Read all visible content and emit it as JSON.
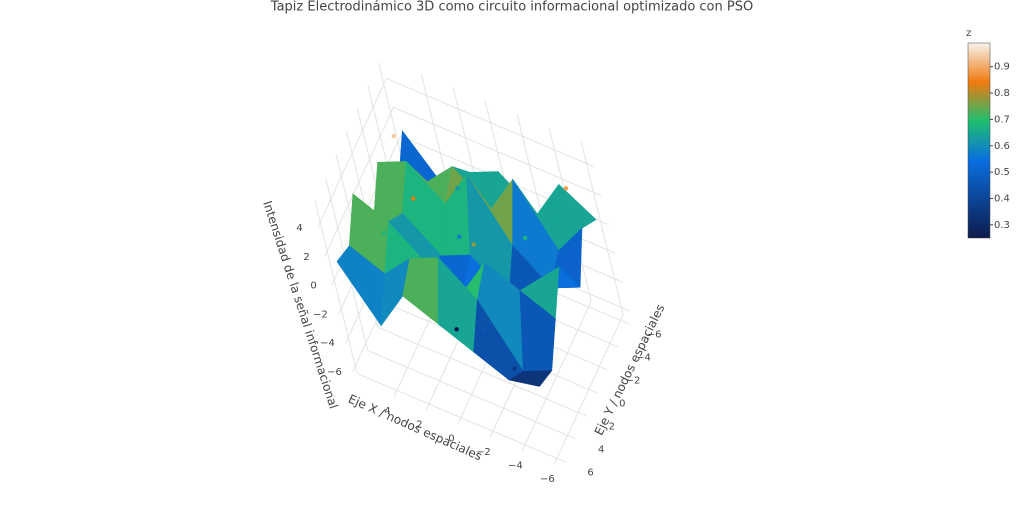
{
  "chart_data": {
    "type": "surface",
    "title": "Tapiz Electrodinámico 3D como circuito informacional optimizado con PSO",
    "x_label": "Eje X / nodos espaciales",
    "y_label": "Eje Y / nodos espaciales",
    "z_label": "Intensidad de la señal informacional",
    "x": [
      -6,
      -4,
      -2,
      0,
      2,
      4,
      6
    ],
    "y": [
      -6,
      -4,
      -2,
      0,
      2,
      4,
      6
    ],
    "z": [
      [
        0.5,
        1.5,
        -1,
        2,
        0,
        -2,
        -1.5
      ],
      [
        2,
        -1,
        -2,
        0,
        1,
        -3,
        -2
      ],
      [
        -1,
        3,
        0,
        -2,
        2,
        1,
        -1
      ],
      [
        1,
        0,
        4,
        0,
        -1,
        3,
        0
      ],
      [
        0,
        2,
        1,
        -1,
        0,
        2,
        1
      ],
      [
        -2,
        0,
        3,
        1,
        2,
        0,
        -2
      ],
      [
        1,
        -1,
        2,
        0,
        3,
        1,
        1.5
      ]
    ],
    "points": {
      "x": [
        -5,
        -3,
        -1,
        0.5,
        2,
        3,
        4.5,
        -2,
        1,
        5,
        -4,
        3.5
      ],
      "y": [
        -5,
        -2,
        1,
        3,
        -4,
        0,
        2,
        4,
        -1,
        -3,
        5,
        5
      ],
      "z": [
        3,
        1,
        2,
        -3,
        0.5,
        2.5,
        1,
        -1,
        0,
        3.5,
        -2,
        1.5
      ]
    },
    "xlim": [
      -6.5,
      6.5
    ],
    "ylim": [
      -6.5,
      6.5
    ],
    "zlim": [
      -6.5,
      5.5
    ],
    "xticks": [
      {
        "value": -6,
        "label": "−6"
      },
      {
        "value": -4,
        "label": "−4"
      },
      {
        "value": -2,
        "label": "−2"
      },
      0,
      2,
      4
    ],
    "yticks": [
      {
        "value": -6,
        "label": "−6"
      },
      {
        "value": -4,
        "label": "−4"
      },
      {
        "value": -2,
        "label": "−2"
      },
      0,
      2,
      4,
      6
    ],
    "zticks": [
      {
        "value": -6,
        "label": "−6"
      },
      {
        "value": -4,
        "label": "−4"
      },
      {
        "value": -2,
        "label": "−2"
      },
      0,
      2,
      4
    ],
    "colorbar_title": "z",
    "cmin": 0.25,
    "cmax": 0.99,
    "colorbar_ticks": [
      0.3,
      0.4,
      0.5,
      0.6,
      0.7,
      0.8,
      0.9
    ],
    "colorscale": [
      [
        0,
        "#0d1b4c"
      ],
      [
        0.4,
        "#0a6fe0"
      ],
      [
        0.6,
        "#1fbf6f"
      ],
      [
        0.8,
        "#f07a10"
      ],
      [
        1,
        "#f7f3ee"
      ]
    ]
  }
}
